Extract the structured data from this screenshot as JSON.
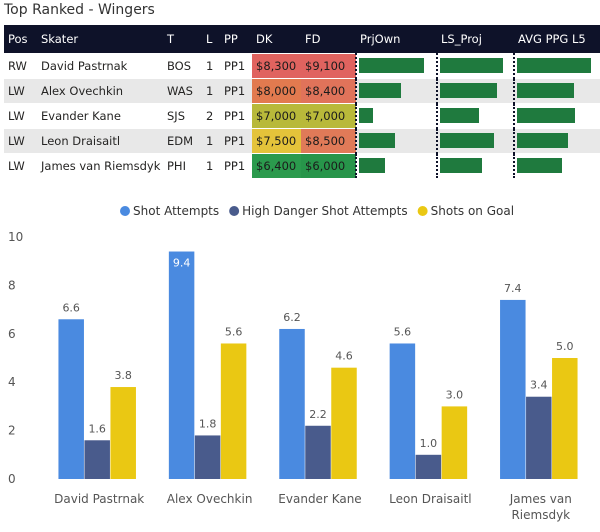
{
  "title": "Top Ranked - Wingers",
  "table": {
    "headers": [
      "Pos",
      "Skater",
      "T",
      "L",
      "PP",
      "DK",
      "FD",
      "PrjOwn",
      "LS_Proj",
      "AVG PPG L5"
    ],
    "rows": [
      {
        "pos": "RW",
        "skater": "David Pastrnak",
        "team": "BOS",
        "line": "1",
        "pp": "PP1",
        "dk": "$8,300",
        "fd": "$9,100",
        "dk_color": "#e0635f",
        "fd_color": "#e0635f",
        "prjown": 0.93,
        "ls_proj": 0.9,
        "avg_ppg": 0.95
      },
      {
        "pos": "LW",
        "skater": "Alex Ovechkin",
        "team": "WAS",
        "line": "1",
        "pp": "PP1",
        "dk": "$8,000",
        "fd": "$8,400",
        "dk_color": "#e27a4f",
        "fd_color": "#e0735a",
        "prjown": 0.6,
        "ls_proj": 0.82,
        "avg_ppg": 0.73
      },
      {
        "pos": "LW",
        "skater": "Evander Kane",
        "team": "SJS",
        "line": "2",
        "pp": "PP1",
        "dk": "$7,000",
        "fd": "$7,000",
        "dk_color": "#b8b93a",
        "fd_color": "#b9b93a",
        "prjown": 0.2,
        "ls_proj": 0.55,
        "avg_ppg": 0.74
      },
      {
        "pos": "LW",
        "skater": "Leon Draisaitl",
        "team": "EDM",
        "line": "1",
        "pp": "PP1",
        "dk": "$7,500",
        "fd": "$8,500",
        "dk_color": "#e4c33a",
        "fd_color": "#e07a58",
        "prjown": 0.52,
        "ls_proj": 0.77,
        "avg_ppg": 0.66
      },
      {
        "pos": "LW",
        "skater": "James van Riemsdyk",
        "team": "PHI",
        "line": "1",
        "pp": "PP1",
        "dk": "$6,400",
        "fd": "$6,000",
        "dk_color": "#2b9a4d",
        "fd_color": "#27954a",
        "prjown": 0.37,
        "ls_proj": 0.6,
        "avg_ppg": 0.58
      }
    ]
  },
  "chart_data": {
    "type": "bar",
    "categories": [
      "David Pastrnak",
      "Alex Ovechkin",
      "Evander Kane",
      "Leon Draisaitl",
      "James van Riemsdyk"
    ],
    "category_lines": [
      [
        "David Pastrnak"
      ],
      [
        "Alex Ovechkin"
      ],
      [
        "Evander Kane"
      ],
      [
        "Leon Draisaitl"
      ],
      [
        "James van",
        "Riemsdyk"
      ]
    ],
    "series": [
      {
        "name": "Shot Attempts",
        "color": "#4a8ae0",
        "values": [
          6.6,
          9.4,
          6.2,
          5.6,
          7.4
        ]
      },
      {
        "name": "High Danger Shot Attempts",
        "color": "#495b8c",
        "values": [
          1.6,
          1.8,
          2.2,
          1.0,
          3.4
        ]
      },
      {
        "name": "Shots on Goal",
        "color": "#eac813",
        "values": [
          3.8,
          5.6,
          4.6,
          3.0,
          5.0
        ]
      }
    ],
    "yticks": [
      "0",
      "2",
      "4",
      "6",
      "8",
      "10"
    ],
    "ylim": [
      0,
      10
    ],
    "legend": "top-center"
  }
}
